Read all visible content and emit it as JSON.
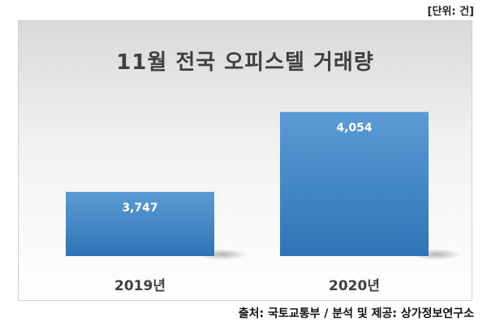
{
  "unit_label": "[단위: 건]",
  "source_text": "출처: 국토교통부 / 분석 및 제공: 상가정보연구소",
  "colors": {
    "bar_top": "#5b9bd5",
    "bar_bottom": "#2e75b6",
    "label": "#ffffff",
    "axis_text": "#404040"
  },
  "chart_data": {
    "type": "bar",
    "title": "11월 전국 오피스텔 거래량",
    "xlabel": "",
    "ylabel": "",
    "categories": [
      "2019년",
      "2020년"
    ],
    "values": [
      3747,
      4054
    ],
    "value_labels": [
      "3,747",
      "4,054"
    ],
    "ylim": [
      3500,
      4100
    ],
    "grid": false,
    "legend": "none"
  }
}
